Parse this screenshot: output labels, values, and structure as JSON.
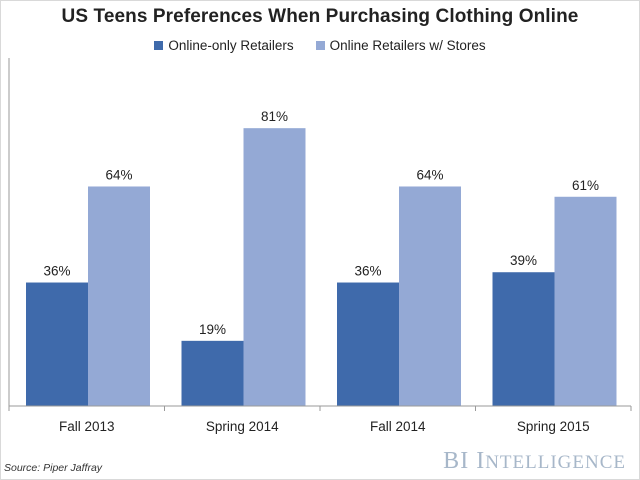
{
  "chart_data": {
    "type": "bar",
    "title": "US Teens Preferences When Purchasing Clothing Online",
    "categories": [
      "Fall 2013",
      "Spring 2014",
      "Fall 2014",
      "Spring 2015"
    ],
    "series": [
      {
        "name": "Online-only Retailers",
        "values": [
          36,
          19,
          36,
          39
        ],
        "labels": [
          "36%",
          "19%",
          "36%",
          "39%"
        ],
        "color": "#3f6aab"
      },
      {
        "name": "Online Retailers w/ Stores",
        "values": [
          64,
          81,
          64,
          61
        ],
        "labels": [
          "64%",
          "81%",
          "64%",
          "61%"
        ],
        "color": "#94a9d5"
      }
    ],
    "ylim": [
      0,
      100
    ],
    "grid": false,
    "legend_position": "top"
  },
  "footer": {
    "source": "Source: Piper Jaffray",
    "brand_parts": [
      "B",
      "I",
      " ",
      "I",
      "NTELLIGENCE"
    ]
  },
  "colors": {
    "axis": "#9a9a9a",
    "text": "#222222",
    "brand": "#a7b7c9"
  }
}
